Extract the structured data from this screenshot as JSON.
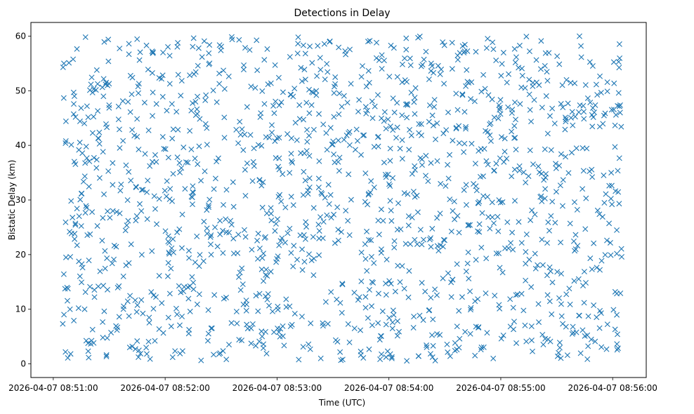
{
  "chart_data": {
    "type": "scatter",
    "title": "Detections in Delay",
    "xlabel": "Time (UTC)",
    "ylabel": "Bistatic Delay (km)",
    "marker": "x",
    "color": "#1f77b4",
    "xlim_seconds": [
      -12.0,
      318.0
    ],
    "ylim": [
      -2.5,
      62.5
    ],
    "x_data_range_seconds": [
      5.0,
      305.0
    ],
    "y_data_range": [
      0.5,
      60.0
    ],
    "approx_point_count": 1500,
    "point_seed": 20260407,
    "xticks": [
      {
        "seconds": 0,
        "label": "2026-04-07 08:51:00"
      },
      {
        "seconds": 60,
        "label": "2026-04-07 08:52:00"
      },
      {
        "seconds": 120,
        "label": "2026-04-07 08:53:00"
      },
      {
        "seconds": 180,
        "label": "2026-04-07 08:54:00"
      },
      {
        "seconds": 240,
        "label": "2026-04-07 08:55:00"
      },
      {
        "seconds": 300,
        "label": "2026-04-07 08:56:00"
      }
    ],
    "yticks": [
      {
        "value": 0,
        "label": "0"
      },
      {
        "value": 10,
        "label": "10"
      },
      {
        "value": 20,
        "label": "20"
      },
      {
        "value": 30,
        "label": "30"
      },
      {
        "value": 40,
        "label": "40"
      },
      {
        "value": 50,
        "label": "50"
      },
      {
        "value": 60,
        "label": "60"
      }
    ]
  }
}
